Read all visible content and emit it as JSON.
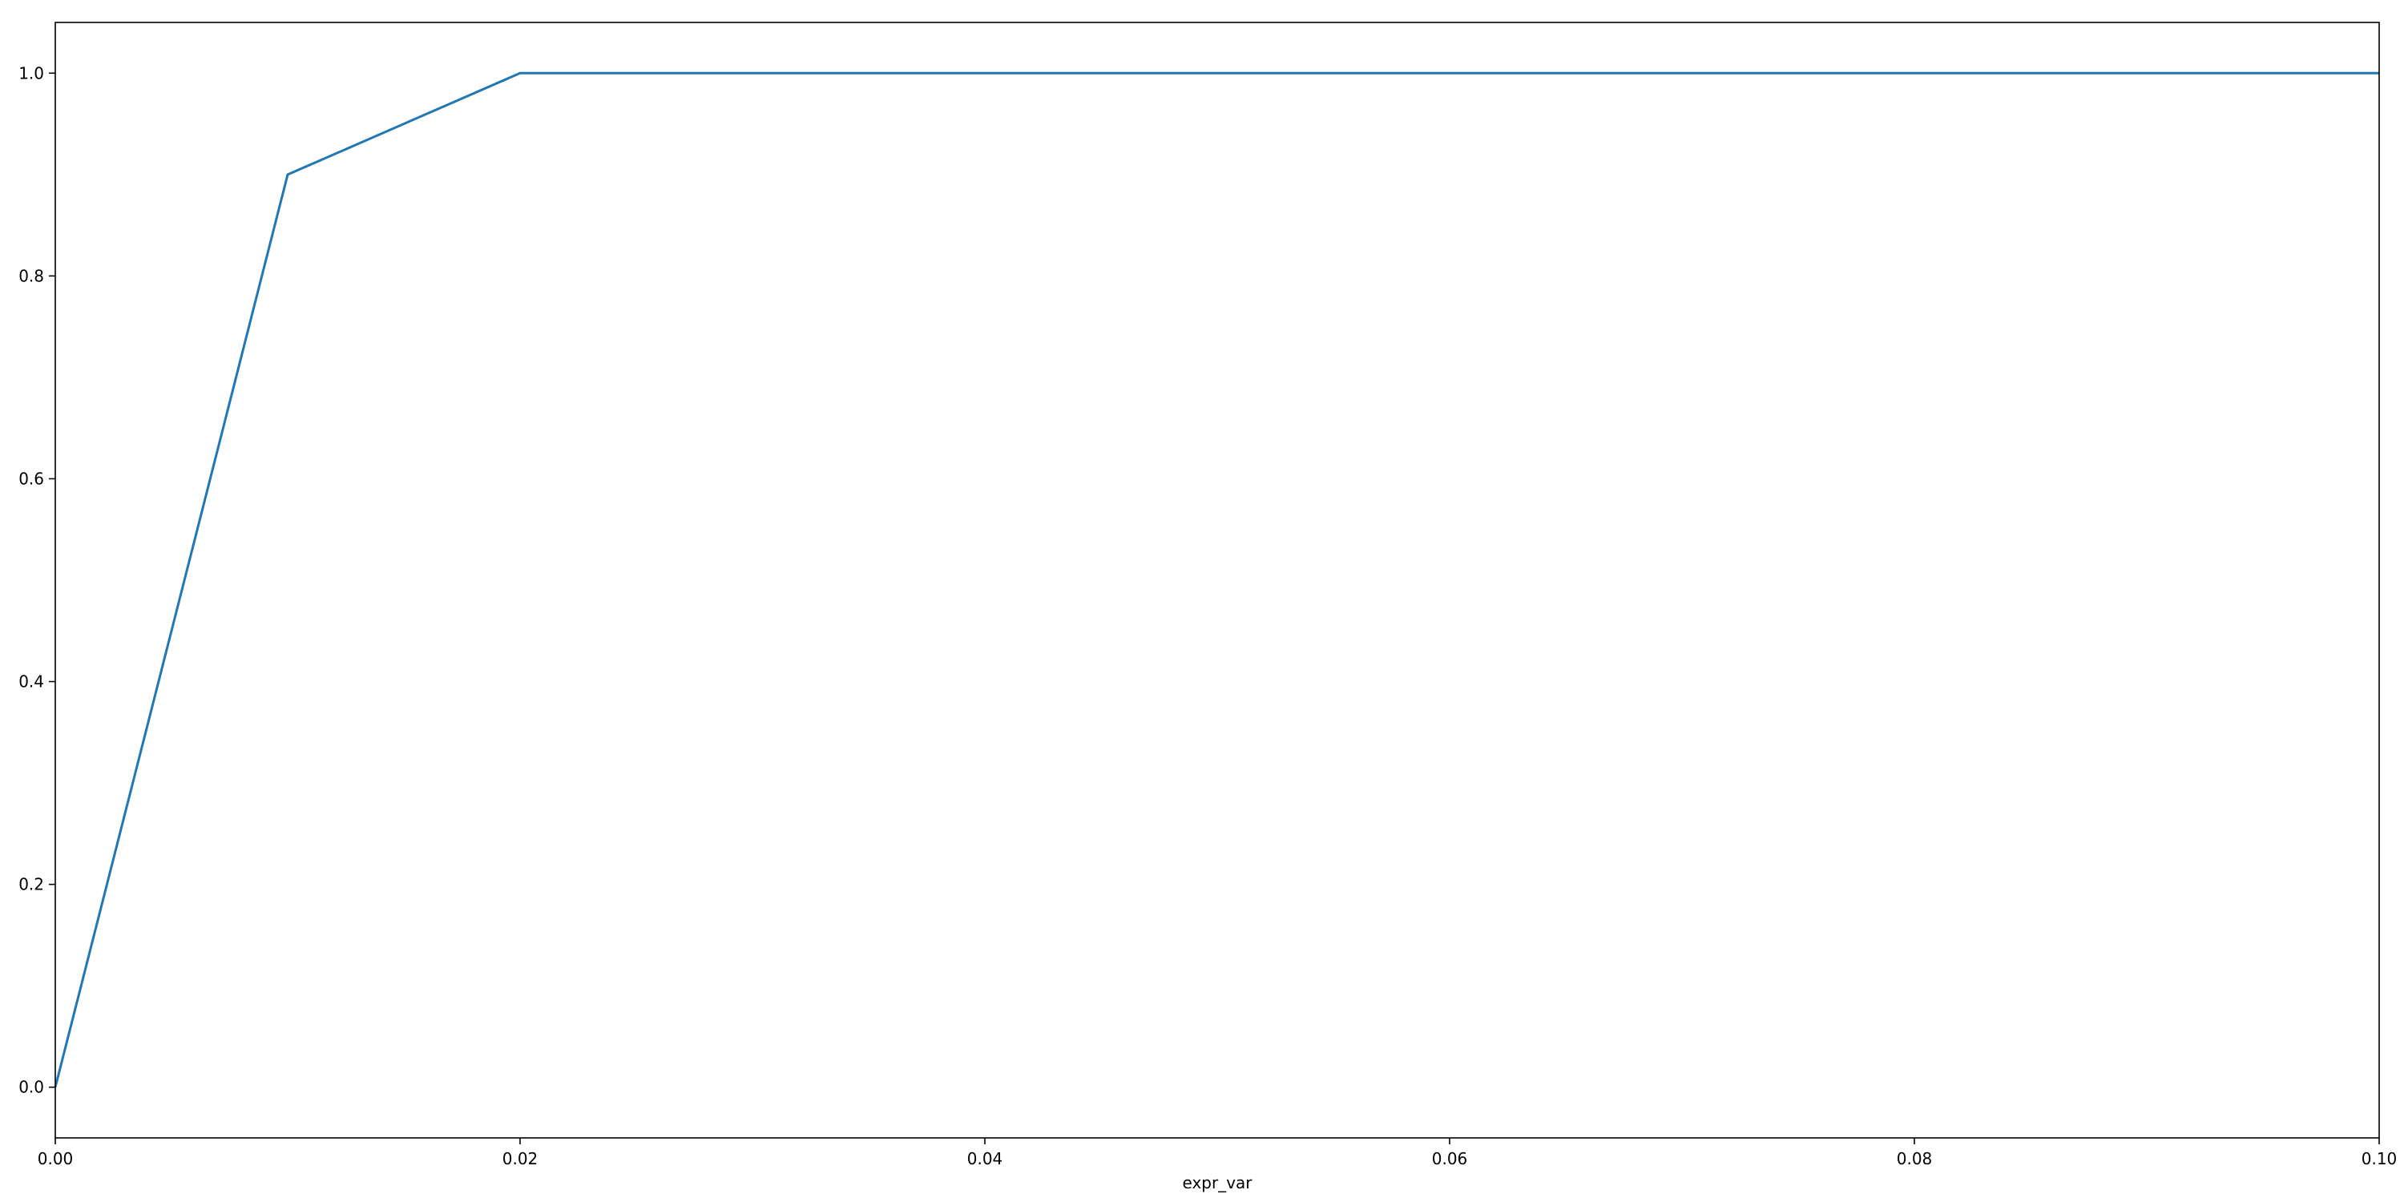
{
  "chart_data": {
    "type": "line",
    "title": "",
    "xlabel": "expr_var",
    "ylabel": "",
    "xlim": [
      0.0,
      0.1
    ],
    "ylim": [
      -0.05,
      1.05
    ],
    "grid": false,
    "x_ticks": [
      0.0,
      0.02,
      0.04,
      0.06,
      0.08,
      0.1
    ],
    "x_tick_labels": [
      "0.00",
      "0.02",
      "0.04",
      "0.06",
      "0.08",
      "0.10"
    ],
    "y_ticks": [
      0.0,
      0.2,
      0.4,
      0.6,
      0.8,
      1.0
    ],
    "y_tick_labels": [
      "0.0",
      "0.2",
      "0.4",
      "0.6",
      "0.8",
      "1.0"
    ],
    "series": [
      {
        "color": "#1f77b4",
        "x": [
          0.0,
          0.01,
          0.02,
          0.03,
          0.04,
          0.05,
          0.06,
          0.07,
          0.08,
          0.09,
          0.1
        ],
        "y": [
          0.0,
          0.9,
          1.0,
          1.0,
          1.0,
          1.0,
          1.0,
          1.0,
          1.0,
          1.0,
          1.0
        ]
      }
    ]
  }
}
